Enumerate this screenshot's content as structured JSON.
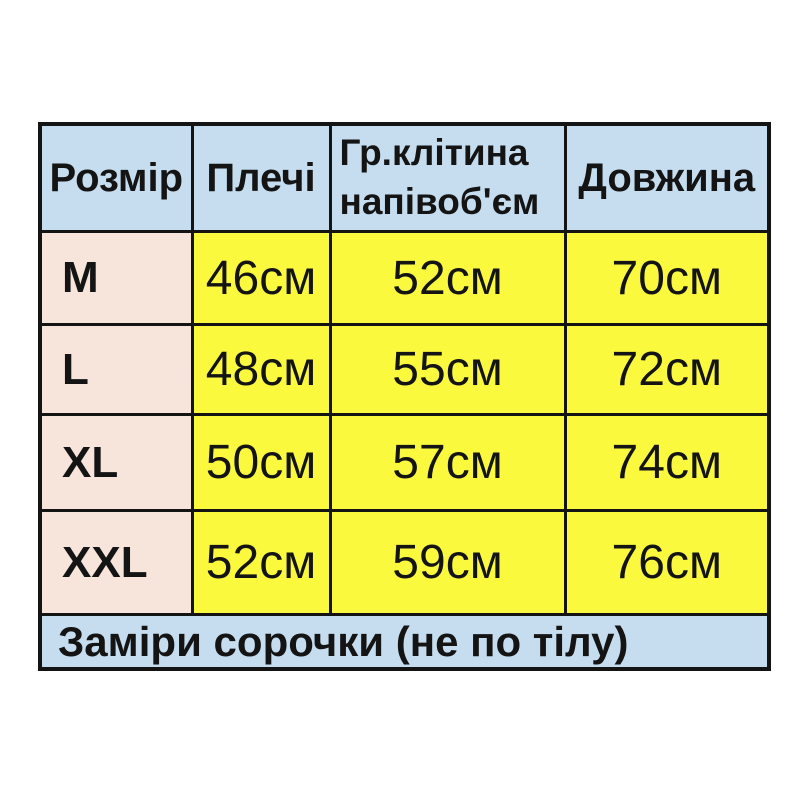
{
  "table": {
    "headers": [
      {
        "label": "Розмір"
      },
      {
        "label": "Плечі"
      },
      {
        "label": "Гр.клітина",
        "label2": "напівоб'єм"
      },
      {
        "label": "Довжина"
      }
    ],
    "rows": [
      {
        "size": "M",
        "shoulders": "46см",
        "chest": "52см",
        "length": "70см"
      },
      {
        "size": "L",
        "shoulders": "48см",
        "chest": "55см",
        "length": "72см"
      },
      {
        "size": "XL",
        "shoulders": "50см",
        "chest": "57см",
        "length": "74см"
      },
      {
        "size": "XXL",
        "shoulders": "52см",
        "chest": "59см",
        "length": "76см"
      }
    ],
    "footer_note": "Заміри сорочки (не по тілу)",
    "colors": {
      "header_bg": "#c5ddee",
      "size_column_bg": "#f7e4db",
      "value_bg": "#fbf93e",
      "footer_bg": "#c5ddee",
      "border": "#141414",
      "text": "#141414",
      "page_bg": "#ffffff"
    }
  },
  "chart_data": {
    "type": "table",
    "title": "Заміри сорочки (не по тілу)",
    "columns": [
      "Розмір",
      "Плечі",
      "Гр.клітина напівоб'єм",
      "Довжина"
    ],
    "rows": [
      [
        "M",
        "46см",
        "52см",
        "70см"
      ],
      [
        "L",
        "48см",
        "55см",
        "72см"
      ],
      [
        "XL",
        "50см",
        "57см",
        "74см"
      ],
      [
        "XXL",
        "52см",
        "59см",
        "76см"
      ]
    ],
    "units": "см"
  }
}
